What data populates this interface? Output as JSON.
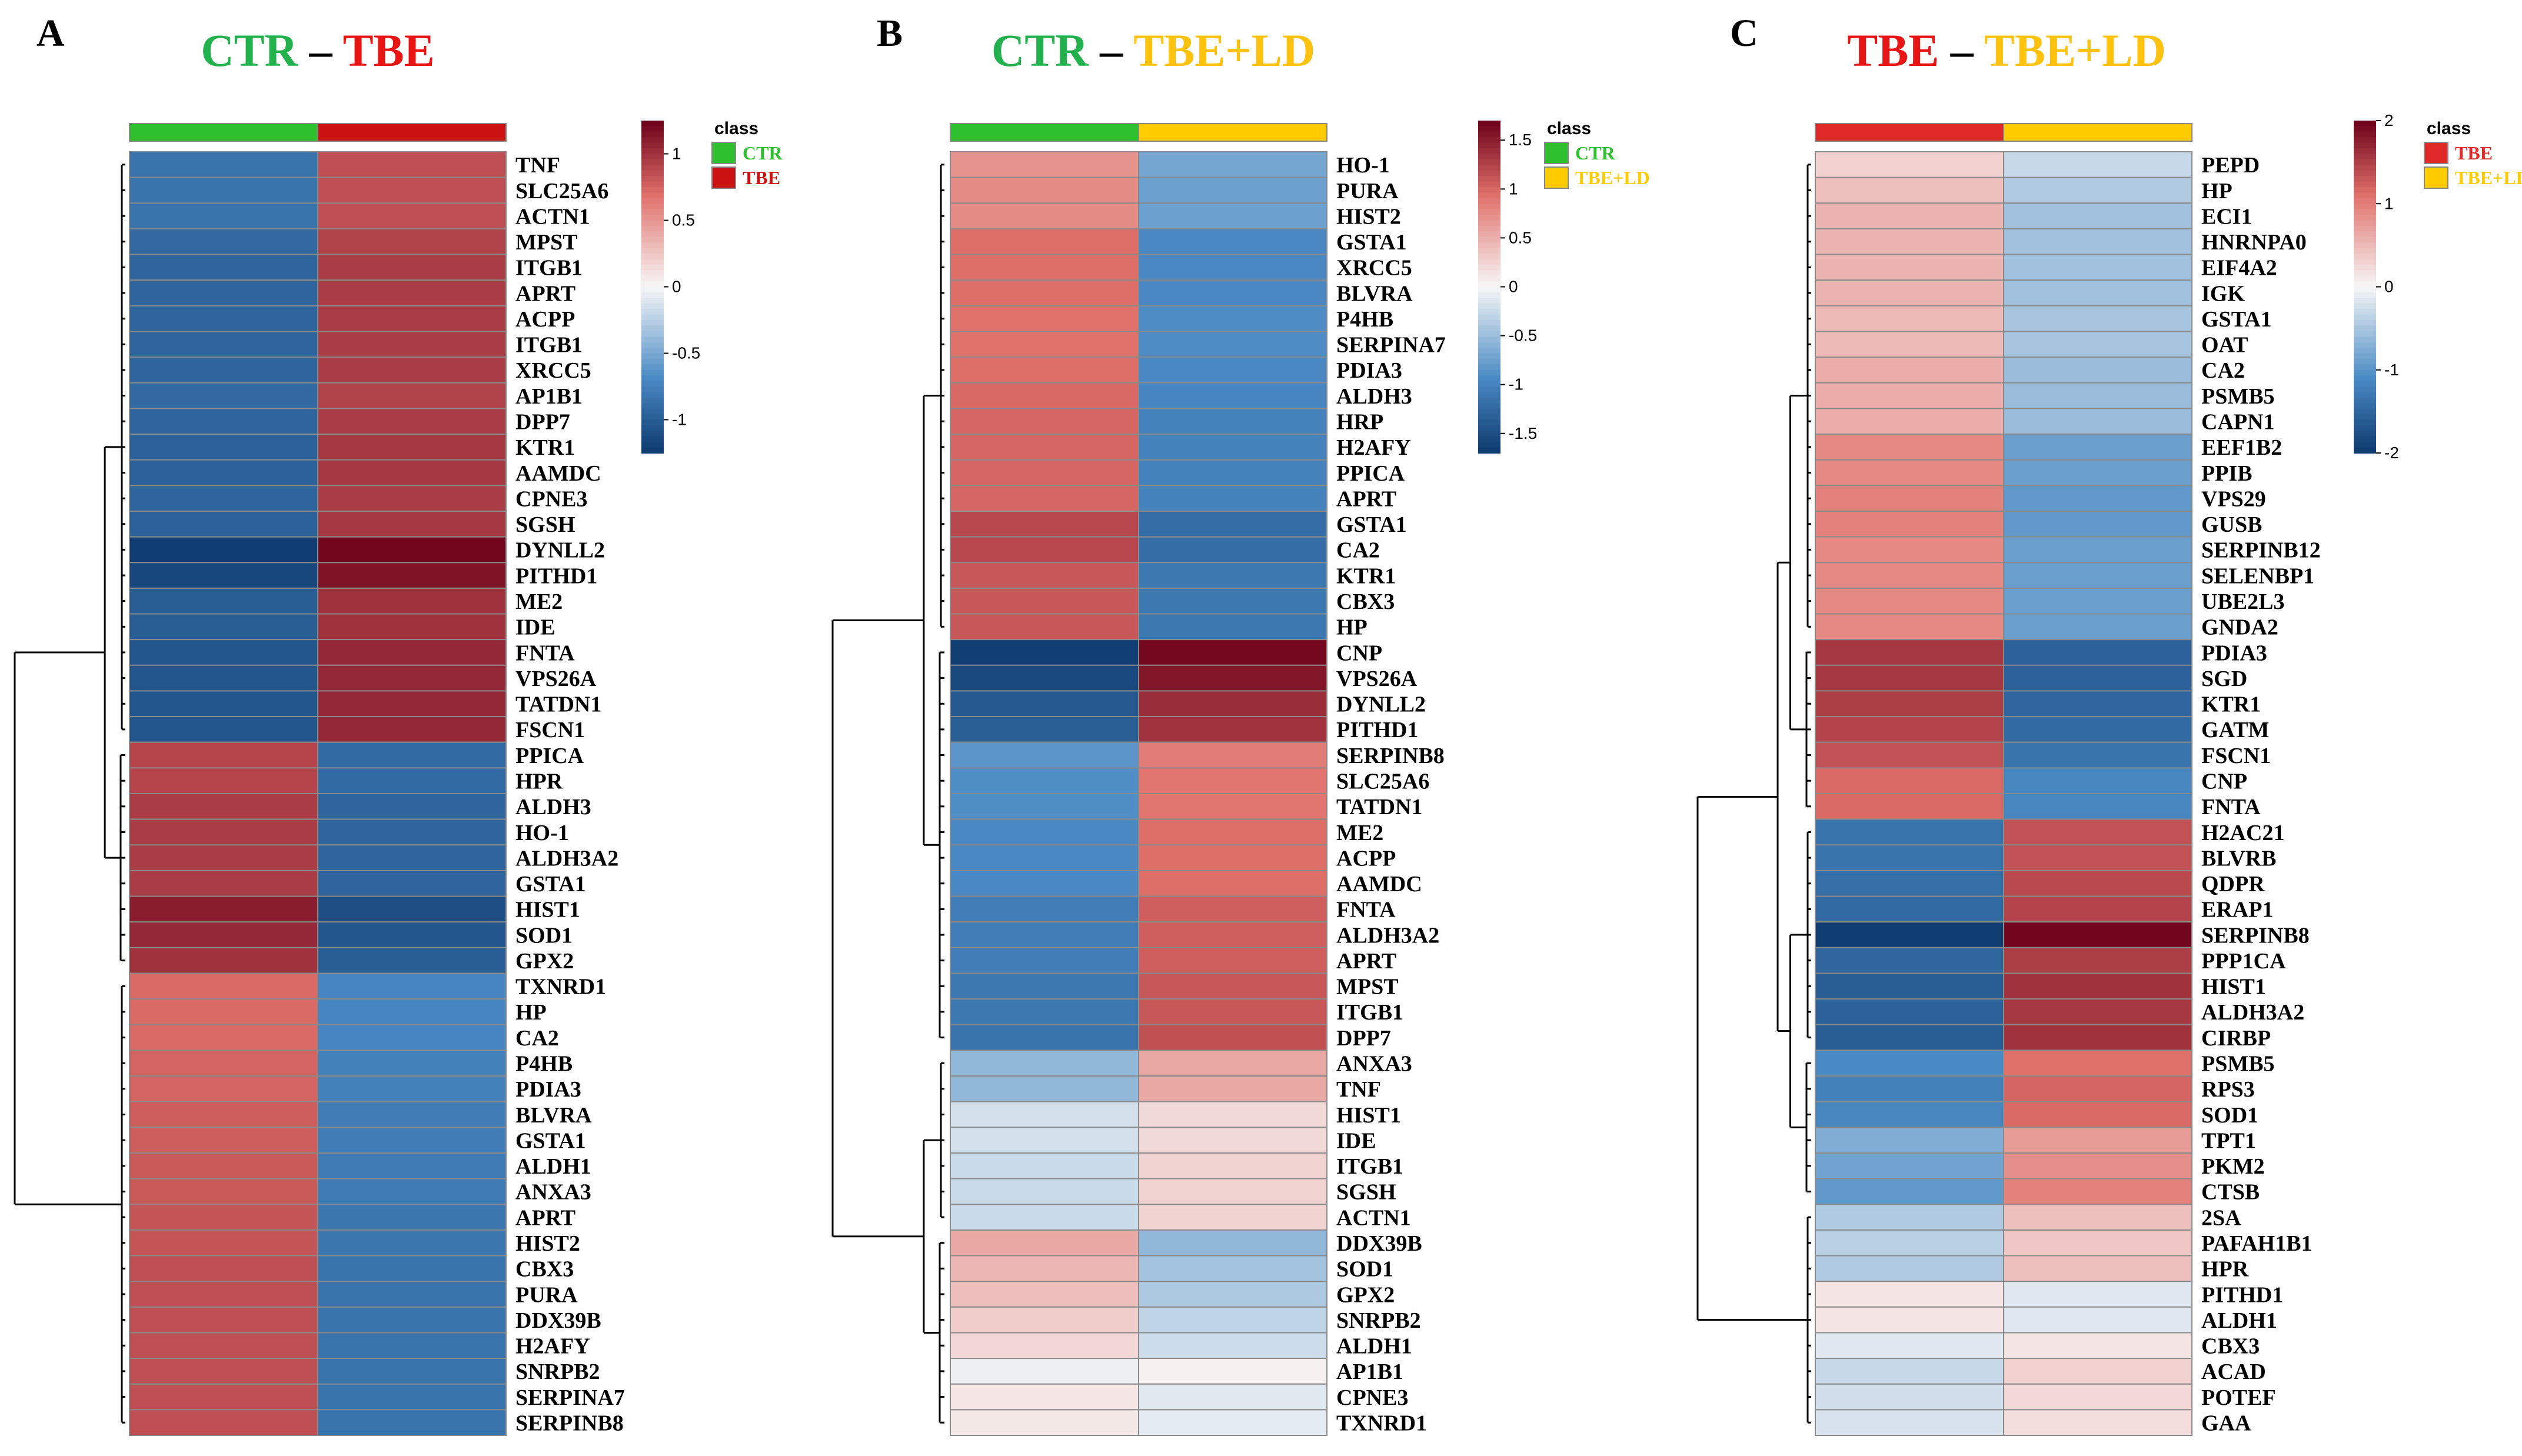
{
  "colors": {
    "low": "#0d3a6e",
    "mid": "#f7f7f7",
    "high": "#6b0019",
    "CTR": "#2ec02e",
    "TBE": "#e02020",
    "TBE+LD": "#ffcc00",
    "dendro": "#000000",
    "cell_border": "#8a8a8a"
  },
  "chart_data": [
    {
      "type": "heatmap",
      "panel_letter": "A",
      "title_parts": [
        {
          "text": "CTR",
          "color": "#22b14c"
        },
        {
          "text": " – ",
          "color": "#000000"
        },
        {
          "text": "TBE",
          "color": "#e81515"
        }
      ],
      "columns": [
        "CTR",
        "TBE"
      ],
      "column_colors": [
        "#2ec02e",
        "#cc1111"
      ],
      "legend_title": "class",
      "legend_entries": [
        {
          "label": "CTR",
          "color": "#2ec02e"
        },
        {
          "label": "TBE",
          "color": "#cc1111"
        }
      ],
      "scale_ticks": [
        1,
        0.5,
        0,
        -0.5,
        -1
      ],
      "scale_tick_labels": [
        "1",
        "0.5",
        "0",
        "-0.5",
        "-1"
      ],
      "scale_range": [
        -1.25,
        1.25
      ],
      "scale_color_limit": 1.25,
      "rows": [
        "TNF",
        "SLC25A6",
        "ACTN1",
        "MPST",
        "ITGB1",
        "APRT",
        "ACPP",
        "ITGB1",
        "XRCC5",
        "AP1B1",
        "DPP7",
        "KTR1",
        "AAMDC",
        "CPNE3",
        "SGSH",
        "DYNLL2",
        "PITHD1",
        "ME2",
        "IDE",
        "FNTA",
        "VPS26A",
        "TATDN1",
        "FSCN1",
        "PPICA",
        "HPR",
        "ALDH3",
        "HO-1",
        "ALDH3A2",
        "GSTA1",
        "HIST1",
        "SOD1",
        "GPX2",
        "TXNRD1",
        "HP",
        "CA2",
        "P4HB",
        "PDIA3",
        "BLVRA",
        "GSTA1",
        "ALDH1",
        "ANXA3",
        "APRT",
        "HIST2",
        "CBX3",
        "PURA",
        "DDX39B",
        "H2AFY",
        "SNRPB2",
        "SERPINA7",
        "SERPINB8"
      ],
      "values": [
        -0.85,
        -0.85,
        -0.85,
        -0.92,
        -0.95,
        -0.95,
        -0.95,
        -0.95,
        -0.95,
        -0.92,
        -0.95,
        -0.97,
        -0.97,
        -0.95,
        -0.97,
        -1.22,
        -1.15,
        -1.0,
        -1.0,
        -1.05,
        -1.05,
        -1.05,
        -1.05,
        0.9,
        0.9,
        0.95,
        0.95,
        0.95,
        0.95,
        1.1,
        1.05,
        1.0,
        0.72,
        0.72,
        0.72,
        0.75,
        0.75,
        0.78,
        0.78,
        0.8,
        0.8,
        0.82,
        0.82,
        0.85,
        0.85,
        0.85,
        0.85,
        0.85,
        0.85,
        0.85
      ],
      "cluster_groups": [
        23,
        9,
        18
      ],
      "row_spacing": "even"
    },
    {
      "type": "heatmap",
      "panel_letter": "B",
      "title_parts": [
        {
          "text": "CTR",
          "color": "#22b14c"
        },
        {
          "text": " – ",
          "color": "#000000"
        },
        {
          "text": "TBE+LD",
          "color": "#ffc20e"
        }
      ],
      "columns": [
        "CTR",
        "TBE+LD"
      ],
      "column_colors": [
        "#2ec02e",
        "#ffcc00"
      ],
      "legend_title": "class",
      "legend_entries": [
        {
          "label": "CTR",
          "color": "#2ec02e"
        },
        {
          "label": "TBE+LD",
          "color": "#ffcc00"
        }
      ],
      "scale_ticks": [
        1.5,
        1,
        0.5,
        0,
        -0.5,
        -1,
        -1.5
      ],
      "scale_tick_labels": [
        "1.5",
        "1",
        "0.5",
        "0",
        "-0.5",
        "-1",
        "-1.5"
      ],
      "scale_range": [
        -1.7,
        1.7
      ],
      "scale_color_limit": 1.7,
      "rows": [
        "HO-1",
        "PURA",
        "HIST2",
        "GSTA1",
        "XRCC5",
        "BLVRA",
        "P4HB",
        "SERPINA7",
        "PDIA3",
        "ALDH3",
        "HRP",
        "H2AFY",
        "PPICA",
        "APRT",
        "GSTA1",
        "CA2",
        "KTR1",
        "CBX3",
        "HP",
        "CNP",
        "VPS26A",
        "DYNLL2",
        "PITHD1",
        "SERPINB8",
        "SLC25A6",
        "TATDN1",
        "ME2",
        "ACPP",
        "AAMDC",
        "FNTA",
        "ALDH3A2",
        "APRT",
        "MPST",
        "ITGB1",
        "DPP7",
        "ANXA3",
        "TNF",
        "HIST1",
        "IDE",
        "ITGB1",
        "SGSH",
        "ACTN1",
        "DDX39B",
        "SOD1",
        "GPX2",
        "SNRPB2",
        "ALDH1",
        "AP1B1",
        "CPNE3",
        "TXNRD1"
      ],
      "values": [
        0.7,
        0.75,
        0.75,
        0.95,
        0.95,
        0.95,
        0.92,
        0.92,
        0.95,
        0.98,
        1.0,
        1.0,
        1.0,
        1.0,
        1.2,
        1.2,
        1.1,
        1.1,
        1.1,
        -1.65,
        -1.55,
        -1.4,
        -1.35,
        -0.85,
        -0.9,
        -0.9,
        -0.95,
        -0.95,
        -0.95,
        -1.05,
        -1.05,
        -1.05,
        -1.1,
        -1.1,
        -1.15,
        -0.55,
        -0.55,
        -0.2,
        -0.2,
        -0.25,
        -0.25,
        -0.25,
        0.55,
        0.45,
        0.4,
        0.3,
        0.22,
        -0.05,
        0.12,
        0.1
      ],
      "cluster_groups": [
        19,
        16,
        7,
        8
      ],
      "row_spacing": "even"
    },
    {
      "type": "heatmap",
      "panel_letter": "C",
      "title_parts": [
        {
          "text": "TBE",
          "color": "#e81515"
        },
        {
          "text": " – ",
          "color": "#000000"
        },
        {
          "text": "TBE+LD",
          "color": "#ffc20e"
        }
      ],
      "columns": [
        "TBE",
        "TBE+LD"
      ],
      "column_colors": [
        "#e02a2a",
        "#ffcc00"
      ],
      "legend_title": "class",
      "legend_entries": [
        {
          "label": "TBE",
          "color": "#e02a2a"
        },
        {
          "label": "TBE+LD",
          "color": "#ffcc00"
        }
      ],
      "scale_ticks": [
        2,
        1,
        0,
        -1,
        -2
      ],
      "scale_tick_labels": [
        "2",
        "1",
        "0",
        "-1",
        "-2"
      ],
      "scale_range": [
        -2,
        2
      ],
      "scale_color_limit": 2,
      "rows": [
        "PEPD",
        "HP",
        "ECI1",
        "HNRNPA0",
        "EIF4A2",
        "IGK",
        "GSTA1",
        "OAT",
        "CA2",
        "PSMB5",
        "CAPN1",
        "EEF1B2",
        "PPIB",
        "VPS29",
        "GUSB",
        "SERPINB12",
        "SELENBP1",
        "UBE2L3",
        "GNDA2",
        "PDIA3",
        "SGD",
        "KTR1",
        "GATM",
        "FSCN1",
        "CNP",
        "FNTA",
        "H2AC21",
        "BLVRB",
        "QDPR",
        "ERAP1",
        "SERPINB8",
        "PPP1CA",
        "HIST1",
        "ALDH3A2",
        "CIRBP",
        "PSMB5",
        "RPS3",
        "SOD1",
        "TPT1",
        "PKM2",
        "CTSB",
        "2SA",
        "PAFAH1B1",
        "HPR",
        "PITHD1",
        "ALDH1",
        "CBX3",
        "ACAD",
        "POTEF",
        "GAA"
      ],
      "values": [
        0.3,
        0.45,
        0.55,
        0.55,
        0.55,
        0.55,
        0.5,
        0.5,
        0.6,
        0.6,
        0.6,
        0.9,
        0.9,
        0.95,
        0.95,
        0.9,
        0.9,
        0.9,
        0.9,
        1.55,
        1.55,
        1.5,
        1.45,
        1.35,
        1.15,
        1.15,
        -1.35,
        -1.35,
        -1.4,
        -1.45,
        -1.95,
        -1.5,
        -1.6,
        -1.55,
        -1.6,
        -1.1,
        -1.2,
        -1.15,
        -0.75,
        -0.85,
        -0.95,
        -0.45,
        -0.4,
        -0.45,
        0.15,
        0.15,
        -0.15,
        -0.3,
        -0.25,
        -0.2
      ],
      "cluster_groups": [
        19,
        7,
        9,
        6,
        9
      ],
      "row_spacing": "even"
    }
  ]
}
